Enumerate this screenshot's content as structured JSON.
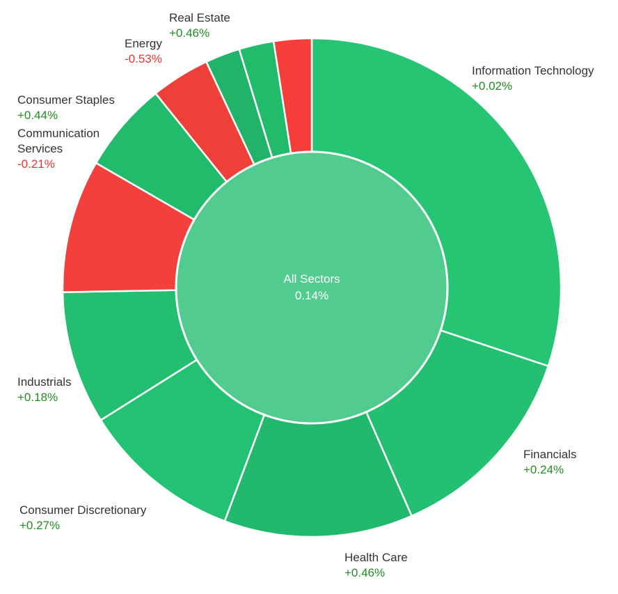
{
  "chart_data": {
    "type": "pie",
    "center": {
      "label": "All Sectors",
      "value": "0.14%"
    },
    "colors": {
      "positive": "#22c272",
      "negative": "#f04038",
      "center_fill": "#52cc8e",
      "positive_text": "#228b22",
      "negative_text": "#f03030"
    },
    "segments": [
      {
        "name": "Information Technology",
        "name_lines": [
          "Information Technology"
        ],
        "change": "+0.02%",
        "weight": 30.7,
        "color": "#25c574",
        "labeled": true
      },
      {
        "name": "Financials",
        "name_lines": [
          "Financials"
        ],
        "change": "+0.24%",
        "weight": 13.6,
        "color": "#23c072",
        "labeled": true
      },
      {
        "name": "Health Care",
        "name_lines": [
          "Health Care"
        ],
        "change": "+0.46%",
        "weight": 12.5,
        "color": "#22b96c",
        "labeled": true
      },
      {
        "name": "Consumer Discretionary",
        "name_lines": [
          "Consumer Discretionary"
        ],
        "change": "+0.27%",
        "weight": 10.6,
        "color": "#23c272",
        "labeled": true
      },
      {
        "name": "Industrials",
        "name_lines": [
          "Industrials"
        ],
        "change": "+0.18%",
        "weight": 8.8,
        "color": "#22bf70",
        "labeled": true
      },
      {
        "name": "Communication Services",
        "name_lines": [
          "Communication",
          "Services"
        ],
        "change": "-0.21%",
        "weight": 8.8,
        "color": "#f4403c",
        "labeled": true
      },
      {
        "name": "Consumer Staples",
        "name_lines": [
          "Consumer Staples"
        ],
        "change": "+0.44%",
        "weight": 6.0,
        "color": "#22bb6c",
        "labeled": true
      },
      {
        "name": "Energy",
        "name_lines": [
          "Energy"
        ],
        "change": "-0.53%",
        "weight": 3.9,
        "color": "#ee4038",
        "labeled": true
      },
      {
        "name": "Real Estate",
        "name_lines": [
          "Real Estate"
        ],
        "change": "+0.46%",
        "weight": 2.3,
        "color": "#21b368",
        "labeled": true
      },
      {
        "name": "",
        "name_lines": [],
        "change": "",
        "weight": 2.3,
        "color": "#22bb6c",
        "labeled": false
      },
      {
        "name": "",
        "name_lines": [],
        "change": "",
        "weight": 2.5,
        "color": "#f63e3a",
        "labeled": false
      }
    ]
  }
}
